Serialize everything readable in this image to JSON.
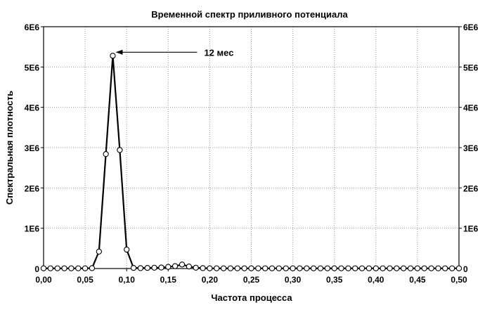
{
  "chart_data": {
    "type": "line",
    "title": "Временной спектр приливного потенциала",
    "xlabel": "Частота процесса",
    "ylabel": "Спектральная плотность",
    "xlim": [
      0,
      0.5
    ],
    "ylim": [
      0,
      6000000
    ],
    "x_ticks": [
      "0,00",
      "0,05",
      "0,10",
      "0,15",
      "0,20",
      "0,25",
      "0,30",
      "0,35",
      "0,40",
      "0,45",
      "0,50"
    ],
    "y_ticks": [
      "0",
      "1E6",
      "2E6",
      "3E6",
      "4E6",
      "5E6",
      "6E6"
    ],
    "grid": true,
    "series": [
      {
        "x": [
          0.0,
          0.0083,
          0.0167,
          0.025,
          0.0333,
          0.0417,
          0.05,
          0.0583,
          0.0667,
          0.075,
          0.0833,
          0.0917,
          0.1,
          0.1083,
          0.1167,
          0.125,
          0.1333,
          0.1417,
          0.15,
          0.1583,
          0.1667,
          0.175,
          0.1833,
          0.1917,
          0.2,
          0.2083,
          0.2167,
          0.225,
          0.2333,
          0.2417,
          0.25,
          0.2583,
          0.2667,
          0.275,
          0.2833,
          0.2917,
          0.3,
          0.3083,
          0.3167,
          0.325,
          0.3333,
          0.3417,
          0.35,
          0.3583,
          0.3667,
          0.375,
          0.3833,
          0.3917,
          0.4,
          0.4083,
          0.4167,
          0.425,
          0.4333,
          0.4417,
          0.45,
          0.4583,
          0.4667,
          0.475,
          0.4833,
          0.4917,
          0.5
        ],
        "y": [
          5000,
          5000,
          5000,
          5000,
          5000,
          5000,
          5000,
          10000,
          420000,
          2840000,
          5280000,
          2940000,
          470000,
          15000,
          10000,
          15000,
          20000,
          25000,
          40000,
          60000,
          100000,
          50000,
          20000,
          10000,
          5000,
          5000,
          5000,
          5000,
          5000,
          5000,
          5000,
          5000,
          5000,
          5000,
          5000,
          5000,
          5000,
          5000,
          5000,
          5000,
          5000,
          5000,
          5000,
          5000,
          5000,
          5000,
          5000,
          5000,
          5000,
          5000,
          5000,
          5000,
          5000,
          5000,
          5000,
          5000,
          5000,
          5000,
          5000,
          5000,
          5000
        ]
      }
    ],
    "annotations": [
      {
        "text": "12 мес",
        "x": 0.0833,
        "y": 5280000
      }
    ]
  }
}
